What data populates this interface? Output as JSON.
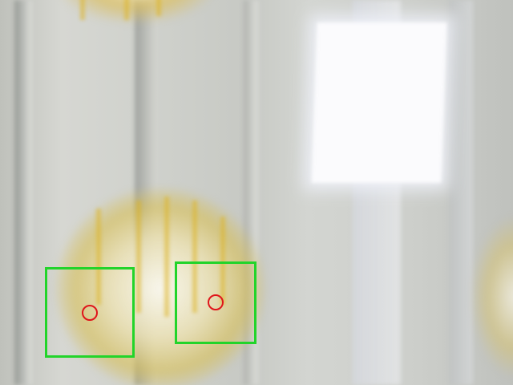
{
  "image": {
    "description_colors": {
      "box_color": "#22d42a",
      "dot_color": "#e0141a"
    }
  }
}
